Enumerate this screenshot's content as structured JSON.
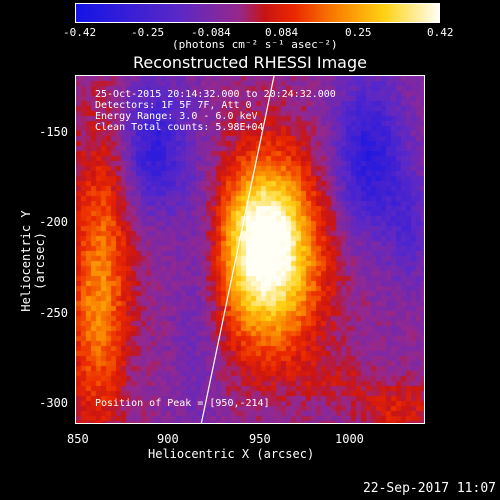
{
  "colorbar": {
    "ticks": [
      "-0.42",
      "-0.25",
      "-0.084",
      "0.084",
      "0.25",
      "0.42"
    ],
    "unit": "(photons cm⁻² s⁻¹ asec⁻²)"
  },
  "title": "Reconstructed RHESSI Image",
  "info": {
    "time": "25-Oct-2015 20:14:32.000 to 20:24:32.000",
    "detectors": "Detectors: 1F 5F 7F, Att 0",
    "energy": "Energy Range: 3.0 - 6.0 keV",
    "clean": "Clean    Total counts: 5.98E+04",
    "peak": "Position of Peak = [950,-214]"
  },
  "axes": {
    "yticks": [
      "-150",
      "-200",
      "-250",
      "-300"
    ],
    "xticks": [
      "850",
      "900",
      "950",
      "1000"
    ],
    "xlabel": "Heliocentric X (arcsec)",
    "ylabel": "Heliocentric Y (arcsec)"
  },
  "timestamp": "22-Sep-2017 11:07"
}
